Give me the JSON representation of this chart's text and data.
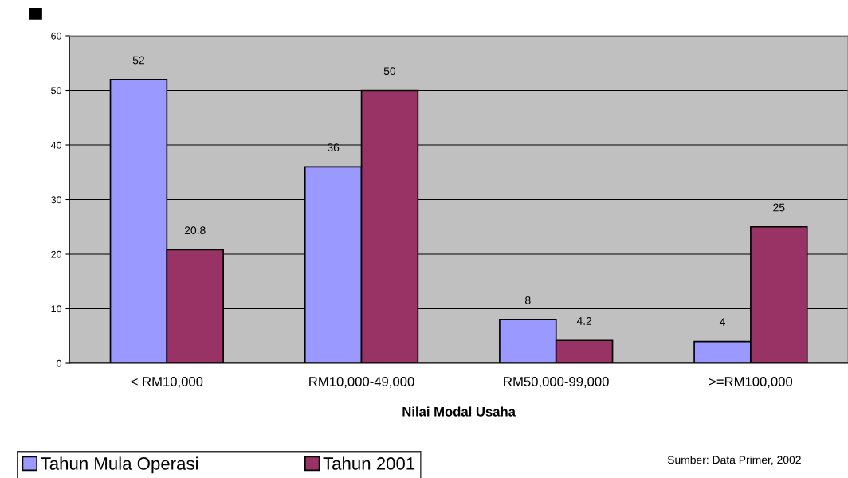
{
  "chart_data": {
    "type": "bar",
    "xlabel": "Nilai Modal Usaha",
    "categories": [
      "< RM10,000",
      "RM10,000-49,000",
      "RM50,000-99,000",
      ">=RM100,000"
    ],
    "series": [
      {
        "name": "Tahun Mula Operasi",
        "color": "#9999ff",
        "values": [
          52,
          36,
          8,
          4
        ]
      },
      {
        "name": "Tahun 2001",
        "color": "#993366",
        "values": [
          20.8,
          50,
          4.2,
          25
        ]
      }
    ],
    "ylim": [
      0,
      60
    ],
    "yticks": [
      0,
      10,
      20,
      30,
      40,
      50,
      60
    ],
    "grid": "y",
    "legend": "bottom left",
    "data_labels": true,
    "annotations": [
      "Sumber: Data Primer, 2002"
    ]
  }
}
